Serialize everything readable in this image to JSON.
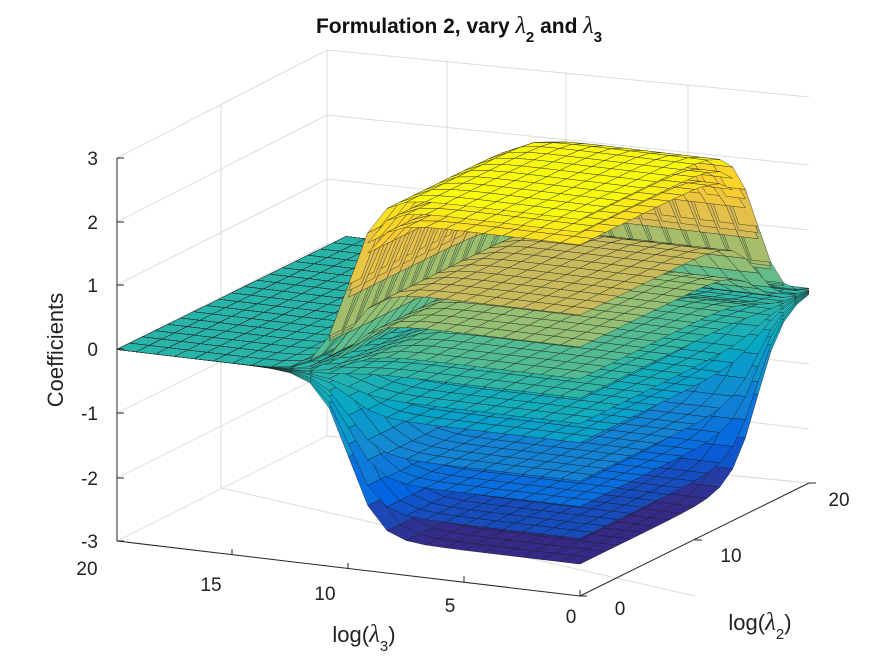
{
  "chart_data": {
    "type": "surface",
    "title_main": "Formulation 2, vary ",
    "title_sym1": "λ",
    "title_sub1": "2",
    "title_mid": " and ",
    "title_sym2": "λ",
    "title_sub2": "3",
    "zlabel": "Coefficients",
    "xlabel_pre": "log(",
    "xlabel_sym": "λ",
    "xlabel_sub": "3",
    "xlabel_post": ")",
    "ylabel_pre": "log(",
    "ylabel_sym": "λ",
    "ylabel_sub": "2",
    "ylabel_post": ")",
    "x_axis": {
      "name": "log(λ3)",
      "lim": [
        0,
        20
      ],
      "ticks": [
        "20",
        "15",
        "10",
        "5",
        "0"
      ]
    },
    "y_axis": {
      "name": "log(λ2)",
      "lim": [
        0,
        20
      ],
      "ticks": [
        "0",
        "10",
        "20"
      ]
    },
    "z_axis": {
      "name": "Coefficients",
      "lim": [
        -3,
        3
      ],
      "ticks": [
        "3",
        "2",
        "1",
        "0",
        "-1",
        "-2",
        "-3"
      ]
    },
    "grid": true,
    "colormap": "parula",
    "colors": [
      "#352a87",
      "#0363e1",
      "#1485d4",
      "#06a7c6",
      "#38b99e",
      "#92bf73",
      "#d9ba56",
      "#fcce2e",
      "#f9fb0e"
    ],
    "series": [
      {
        "surface": 1,
        "end_value": 2.9,
        "transition_log_lambda3": 10
      },
      {
        "surface": 2,
        "end_value": 2.7,
        "transition_log_lambda3": 10
      },
      {
        "surface": 3,
        "end_value": 2.5,
        "transition_log_lambda3": 10
      },
      {
        "surface": 4,
        "end_value": 1.4,
        "transition_log_lambda3": 10
      },
      {
        "surface": 5,
        "end_value": 0.9,
        "transition_log_lambda3": 10
      },
      {
        "surface": 6,
        "end_value": 0.4,
        "transition_log_lambda3": 10
      },
      {
        "surface": 7,
        "end_value": 0.1,
        "transition_log_lambda3": 10
      },
      {
        "surface": 8,
        "end_value": -0.3,
        "transition_log_lambda3": 10
      },
      {
        "surface": 9,
        "end_value": -0.6,
        "transition_log_lambda3": 10
      },
      {
        "surface": 10,
        "end_value": -1.2,
        "transition_log_lambda3": 10
      },
      {
        "surface": 11,
        "end_value": -1.6,
        "transition_log_lambda3": 10
      },
      {
        "surface": 12,
        "end_value": -2.1,
        "transition_log_lambda3": 10
      },
      {
        "surface": 13,
        "end_value": -2.5,
        "transition_log_lambda3": 10
      }
    ],
    "start_value": 0
  }
}
